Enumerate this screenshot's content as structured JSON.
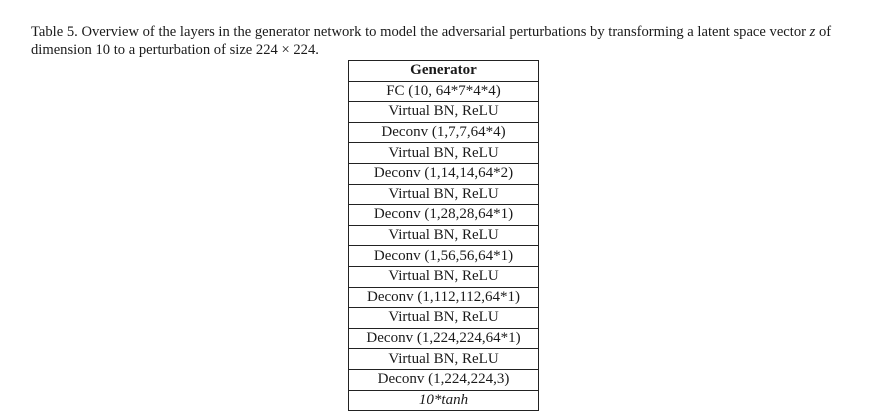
{
  "caption": {
    "text_before": "Table 5. Overview of the layers in the generator network to model the adversarial perturbations by transforming a latent space vector ",
    "variable": "z",
    "text_after": " of dimension 10 to a perturbation of size 224 × 224."
  },
  "table": {
    "header": "Generator",
    "rows": [
      {
        "text": "FC (10, 64*7*4*4)",
        "italic": false
      },
      {
        "text": "Virtual BN, ReLU",
        "italic": false
      },
      {
        "text": "Deconv (1,7,7,64*4)",
        "italic": false
      },
      {
        "text": "Virtual BN, ReLU",
        "italic": false
      },
      {
        "text": "Deconv (1,14,14,64*2)",
        "italic": false
      },
      {
        "text": "Virtual BN, ReLU",
        "italic": false
      },
      {
        "text": "Deconv (1,28,28,64*1)",
        "italic": false
      },
      {
        "text": "Virtual BN, ReLU",
        "italic": false
      },
      {
        "text": "Deconv (1,56,56,64*1)",
        "italic": false
      },
      {
        "text": "Virtual BN, ReLU",
        "italic": false
      },
      {
        "text": "Deconv (1,112,112,64*1)",
        "italic": false
      },
      {
        "text": "Virtual BN, ReLU",
        "italic": false
      },
      {
        "text": "Deconv (1,224,224,64*1)",
        "italic": false
      },
      {
        "text": "Virtual BN, ReLU",
        "italic": false
      },
      {
        "text": "Deconv (1,224,224,3)",
        "italic": false
      },
      {
        "text": "10*tanh",
        "italic": true
      }
    ]
  }
}
